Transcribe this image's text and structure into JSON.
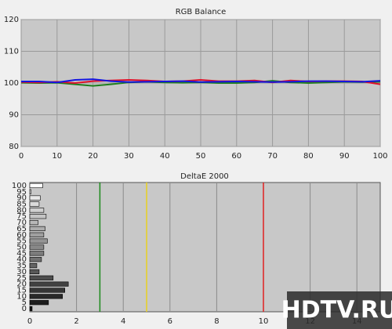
{
  "chart_data": [
    {
      "type": "line",
      "title": "RGB Balance",
      "x": [
        0,
        5,
        10,
        15,
        20,
        25,
        30,
        35,
        40,
        45,
        50,
        55,
        60,
        65,
        70,
        75,
        80,
        85,
        90,
        95,
        100
      ],
      "series": [
        {
          "name": "Green",
          "color": "#1f7f1f",
          "values": [
            100.1,
            100.0,
            100.1,
            99.6,
            99.1,
            99.6,
            100.2,
            100.4,
            100.2,
            100.1,
            100.2,
            100.0,
            100.0,
            100.2,
            100.7,
            100.2,
            100.0,
            100.2,
            100.4,
            100.3,
            100.4
          ]
        },
        {
          "name": "Red",
          "color": "#e0102a",
          "values": [
            100.3,
            100.2,
            100.4,
            100.0,
            100.6,
            100.8,
            101.0,
            100.8,
            100.5,
            100.6,
            101.0,
            100.6,
            100.6,
            100.8,
            100.2,
            100.8,
            100.5,
            100.6,
            100.6,
            100.5,
            99.6
          ]
        },
        {
          "name": "Blue",
          "color": "#1414e0",
          "values": [
            100.5,
            100.5,
            100.2,
            101.0,
            101.2,
            100.6,
            100.3,
            100.4,
            100.5,
            100.6,
            100.3,
            100.4,
            100.5,
            100.4,
            100.3,
            100.4,
            100.6,
            100.6,
            100.5,
            100.4,
            100.7
          ]
        }
      ],
      "xlim": [
        0,
        100
      ],
      "xticks": [
        0,
        10,
        20,
        30,
        40,
        50,
        60,
        70,
        80,
        90,
        100
      ],
      "ylim": [
        80,
        120
      ],
      "yticks": [
        80,
        90,
        100,
        110,
        120
      ],
      "grid": true
    },
    {
      "type": "barh",
      "title": "DeltaE 2000",
      "categories": [
        "0",
        "5",
        "10",
        "15",
        "20",
        "25",
        "30",
        "35",
        "40",
        "45",
        "50",
        "55",
        "60",
        "65",
        "70",
        "75",
        "80",
        "85",
        "90",
        "95",
        "100"
      ],
      "values": [
        0.1,
        0.8,
        1.4,
        1.5,
        1.65,
        1.0,
        0.4,
        0.3,
        0.5,
        0.6,
        0.6,
        0.75,
        0.6,
        0.65,
        0.35,
        0.7,
        0.6,
        0.4,
        0.45,
        0.05,
        0.55
      ],
      "colors": [
        "#111111",
        "#ffffff"
      ],
      "xlim": [
        0,
        15
      ],
      "xticks": [
        0,
        2,
        4,
        6,
        8,
        10,
        12,
        14
      ],
      "grid": true,
      "reference_lines": [
        {
          "value": 3,
          "color": "#1a8a1a"
        },
        {
          "value": 5,
          "color": "#e8d020"
        },
        {
          "value": 10,
          "color": "#e02020"
        }
      ],
      "annotation": "HDTV.RU"
    }
  ]
}
